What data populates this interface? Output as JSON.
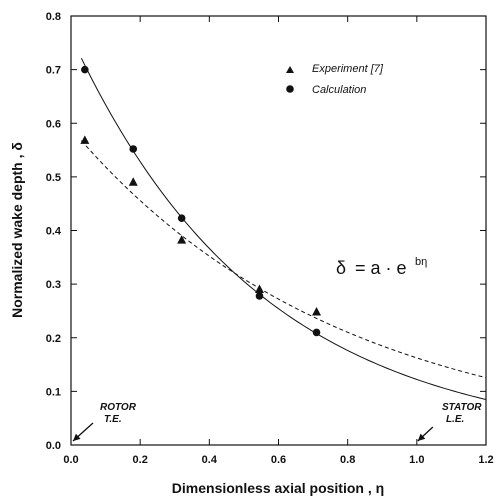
{
  "chart_data": {
    "type": "scatter",
    "xlabel": "Dimensionless axial position , η",
    "ylabel": "Normalized wake depth , δ",
    "xlim": [
      0.0,
      1.2
    ],
    "ylim": [
      0.0,
      0.8
    ],
    "x_ticks": [
      "0.0",
      "0.2",
      "0.4",
      "0.6",
      "0.8",
      "1.0",
      "1.2"
    ],
    "y_ticks": [
      "0.0",
      "0.1",
      "0.2",
      "0.3",
      "0.4",
      "0.5",
      "0.6",
      "0.7",
      "0.8"
    ],
    "grid": false,
    "legend_position": "top-right",
    "series": [
      {
        "name": "Experiment [7]",
        "marker": "triangle",
        "points": [
          {
            "x": 0.04,
            "y": 0.568
          },
          {
            "x": 0.18,
            "y": 0.49
          },
          {
            "x": 0.32,
            "y": 0.382
          },
          {
            "x": 0.545,
            "y": 0.29
          },
          {
            "x": 0.71,
            "y": 0.248
          }
        ],
        "fit": {
          "a": 0.59,
          "b": -1.29,
          "style": "dashed"
        }
      },
      {
        "name": "Calculation",
        "marker": "circle",
        "points": [
          {
            "x": 0.04,
            "y": 0.7
          },
          {
            "x": 0.18,
            "y": 0.552
          },
          {
            "x": 0.32,
            "y": 0.423
          },
          {
            "x": 0.545,
            "y": 0.278
          },
          {
            "x": 0.71,
            "y": 0.21
          }
        ],
        "fit": {
          "a": 0.762,
          "b": -1.83,
          "style": "solid"
        }
      }
    ],
    "annotations": {
      "rotor_line1": "ROTOR",
      "rotor_line2": "T.E.",
      "stator_line1": "STATOR",
      "stator_line2": "L.E.",
      "rotor_x": 0.0,
      "stator_x": 1.0
    },
    "equation": {
      "lhs": "δ",
      "rhs": "= a · e",
      "sup": "bη"
    }
  }
}
